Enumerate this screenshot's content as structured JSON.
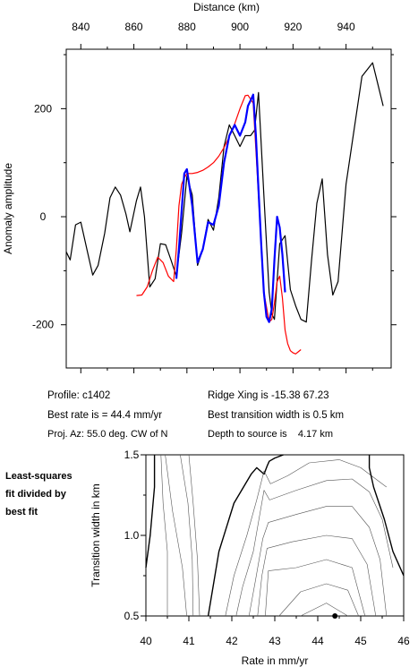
{
  "info": {
    "profile": "Profile: c1402",
    "best_rate": "Best rate is = 44.4 mm/yr",
    "proj_az": "Proj. Az: 55.0 deg. CW of N",
    "ridge_xing": "Ridge Xing is -15.38 67.23",
    "best_width": "Best transition width is 0.5 km",
    "depth": "Depth to source is    4.17 km"
  },
  "side_label": [
    "Least-squares",
    "fit divided by",
    "best fit"
  ],
  "chart_data": [
    {
      "type": "line",
      "xlabel": "Distance (km)",
      "ylabel": "Anomaly amplitude",
      "xlim": [
        834.5,
        957
      ],
      "ylim": [
        -280,
        310
      ],
      "xticks": [
        840,
        860,
        880,
        900,
        920,
        940
      ],
      "yticks": [
        -200,
        0,
        200
      ],
      "series": [
        {
          "color": "#000000",
          "x": [
            834.5,
            836,
            838,
            840,
            842.5,
            844.5,
            846.5,
            849,
            851,
            853,
            855,
            857,
            858.5,
            861,
            862.5,
            864,
            866,
            868,
            870,
            872,
            874,
            876,
            878,
            880,
            882,
            884,
            886,
            888,
            890,
            892,
            894,
            896,
            898,
            900,
            902,
            904,
            905.5,
            907,
            909,
            911,
            912,
            913,
            915,
            917,
            919,
            921,
            923,
            925,
            927,
            929,
            931,
            933,
            935,
            937,
            940,
            943,
            946,
            950,
            952,
            954
          ],
          "y": [
            -65,
            -80,
            -15,
            -10,
            -65,
            -108,
            -90,
            -30,
            35,
            55,
            40,
            5,
            -28,
            30,
            55,
            0,
            -130,
            -115,
            -50,
            -52,
            -80,
            -110,
            -30,
            75,
            40,
            -90,
            -60,
            -5,
            -25,
            35,
            130,
            170,
            150,
            130,
            150,
            150,
            160,
            230,
            40,
            -140,
            -180,
            -190,
            -50,
            -35,
            -135,
            -165,
            -190,
            -195,
            -80,
            25,
            70,
            -70,
            -145,
            -120,
            60,
            160,
            260,
            285,
            245,
            205
          ]
        },
        {
          "color": "#ff0000",
          "x": [
            861,
            863,
            865,
            867,
            869,
            871,
            873,
            875,
            876,
            877,
            878,
            879,
            880,
            882,
            884,
            886,
            888,
            890,
            892,
            894,
            896,
            898,
            900,
            902,
            903,
            905,
            907,
            909,
            911,
            912,
            913,
            914,
            915,
            916,
            917,
            918,
            919,
            920,
            921,
            922,
            923
          ],
          "y": [
            -146,
            -145,
            -130,
            -100,
            -75,
            -85,
            -110,
            -120,
            -60,
            20,
            60,
            72,
            80,
            80,
            82,
            86,
            92,
            100,
            112,
            128,
            148,
            172,
            200,
            224,
            225,
            210,
            40,
            -140,
            -195,
            -190,
            -160,
            -120,
            -110,
            -150,
            -210,
            -235,
            -248,
            -252,
            -254,
            -250,
            -246
          ]
        },
        {
          "color": "#0000ff",
          "x": [
            876,
            877,
            878,
            879,
            880,
            881,
            882,
            884,
            886,
            888,
            890,
            892,
            894,
            896,
            898,
            900,
            902,
            903,
            904,
            905,
            906,
            907,
            908,
            909,
            910,
            911,
            912,
            913,
            914,
            915,
            916,
            917
          ],
          "y": [
            -115,
            -60,
            10,
            80,
            88,
            55,
            20,
            -85,
            -60,
            -10,
            -15,
            20,
            100,
            150,
            170,
            150,
            175,
            205,
            215,
            226,
            150,
            50,
            -50,
            -140,
            -185,
            -195,
            -170,
            -80,
            0,
            -20,
            -70,
            -140
          ]
        }
      ]
    },
    {
      "type": "contour",
      "xlabel": "Rate in mm/yr",
      "ylabel": "Transition width in km",
      "xlim": [
        40,
        46
      ],
      "ylim": [
        0.5,
        1.5
      ],
      "xticks": [
        40,
        41,
        42,
        43,
        44,
        45,
        46
      ],
      "yticks": [
        0.5,
        1.0,
        1.5
      ],
      "best_fit": {
        "x": 44.4,
        "y": 0.5
      },
      "contours": [
        {
          "bold": true,
          "x": [
            40,
            40.1,
            40.2,
            40.2
          ],
          "y": [
            0.8,
            1.0,
            1.3,
            1.5
          ]
        },
        {
          "bold": false,
          "x": [
            40.5,
            40.5,
            40.4,
            40.35
          ],
          "y": [
            0.5,
            0.9,
            1.2,
            1.5
          ]
        },
        {
          "bold": false,
          "x": [
            40.95,
            40.85,
            40.62,
            40.45
          ],
          "y": [
            0.5,
            0.8,
            1.15,
            1.5
          ]
        },
        {
          "bold": false,
          "x": [
            41.1,
            41.08,
            40.98,
            40.8
          ],
          "y": [
            0.5,
            0.85,
            1.2,
            1.5
          ]
        },
        {
          "bold": false,
          "x": [
            41.25,
            41.2,
            41.1,
            41.0
          ],
          "y": [
            0.5,
            0.85,
            1.2,
            1.5
          ]
        },
        {
          "bold": true,
          "x": [
            41.45,
            41.7,
            42.05,
            42.45,
            42.58,
            42.75,
            42.82,
            42.87,
            43.0,
            43.2
          ],
          "y": [
            0.5,
            0.9,
            1.2,
            1.38,
            1.42,
            1.38,
            1.43,
            1.46,
            1.48,
            1.5
          ]
        },
        {
          "bold": false,
          "x": [
            41.85,
            42.05,
            42.35,
            42.58,
            42.75,
            42.9,
            43.3,
            43.8,
            44.5,
            45.0,
            45.6
          ],
          "y": [
            0.5,
            0.75,
            1.0,
            1.22,
            1.4,
            1.32,
            1.37,
            1.45,
            1.47,
            1.42,
            1.3
          ]
        },
        {
          "bold": false,
          "x": [
            42.1,
            42.25,
            42.5,
            42.75,
            42.88,
            43.5,
            44.2,
            44.8,
            45.2,
            45.5,
            45.75
          ],
          "y": [
            0.5,
            0.68,
            0.9,
            1.28,
            1.22,
            1.28,
            1.34,
            1.35,
            1.27,
            1.1,
            0.8
          ]
        },
        {
          "bold": false,
          "x": [
            42.4,
            42.55,
            42.72,
            42.85,
            43.5,
            44.2,
            44.8,
            45.2,
            45.45,
            45.6
          ],
          "y": [
            0.5,
            0.72,
            0.98,
            1.08,
            1.13,
            1.18,
            1.18,
            1.05,
            0.85,
            0.5
          ]
        },
        {
          "bold": false,
          "x": [
            42.6,
            42.7,
            42.82,
            43.4,
            44.2,
            44.8,
            45.15,
            45.35
          ],
          "y": [
            0.5,
            0.75,
            0.92,
            0.96,
            1.0,
            0.98,
            0.82,
            0.5
          ]
        },
        {
          "bold": false,
          "x": [
            42.78,
            42.85,
            43.5,
            44.2,
            44.8,
            45.1
          ],
          "y": [
            0.5,
            0.78,
            0.8,
            0.85,
            0.8,
            0.5
          ]
        },
        {
          "bold": false,
          "x": [
            43.1,
            43.6,
            44.2,
            44.7,
            44.95
          ],
          "y": [
            0.5,
            0.65,
            0.7,
            0.66,
            0.5
          ]
        },
        {
          "bold": false,
          "x": [
            43.6,
            44.2,
            44.7
          ],
          "y": [
            0.5,
            0.58,
            0.5
          ]
        },
        {
          "bold": true,
          "x": [
            45.2,
            45.2,
            45.3,
            45.55,
            45.75,
            46.0
          ],
          "y": [
            1.5,
            1.42,
            1.3,
            1.1,
            0.9,
            0.75
          ]
        }
      ]
    }
  ]
}
